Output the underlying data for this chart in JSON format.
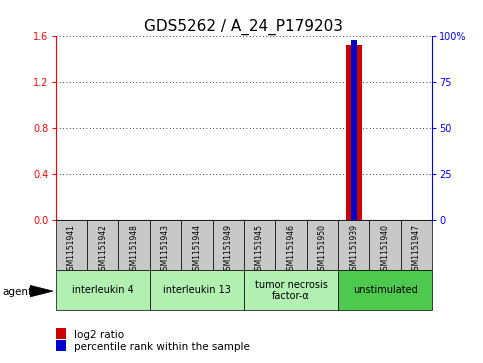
{
  "title": "GDS5262 / A_24_P179203",
  "samples": [
    "GSM1151941",
    "GSM1151942",
    "GSM1151948",
    "GSM1151943",
    "GSM1151944",
    "GSM1151949",
    "GSM1151945",
    "GSM1151946",
    "GSM1151950",
    "GSM1151939",
    "GSM1151940",
    "GSM1151947"
  ],
  "log2_ratio": [
    0,
    0,
    0,
    0,
    0,
    0,
    0,
    0,
    0,
    1.52,
    0,
    0
  ],
  "percentile_rank": [
    0,
    0,
    0,
    0,
    0,
    0,
    0,
    0,
    0,
    98,
    0,
    0
  ],
  "ylim_left": [
    0,
    1.6
  ],
  "ylim_right": [
    0,
    100
  ],
  "yticks_left": [
    0,
    0.4,
    0.8,
    1.2,
    1.6
  ],
  "yticks_right": [
    0,
    25,
    50,
    75,
    100
  ],
  "ytick_labels_right": [
    "0",
    "25",
    "50",
    "75",
    "100%"
  ],
  "agents": [
    {
      "label": "interleukin 4",
      "start": 0,
      "end": 2,
      "color": "#b2f0b2"
    },
    {
      "label": "interleukin 13",
      "start": 3,
      "end": 5,
      "color": "#b2f0b2"
    },
    {
      "label": "tumor necrosis\nfactor-α",
      "start": 6,
      "end": 8,
      "color": "#b2f0b2"
    },
    {
      "label": "unstimulated",
      "start": 9,
      "end": 11,
      "color": "#4dc94d"
    }
  ],
  "bar_color_red": "#CC0000",
  "bar_color_blue": "#0000CC",
  "grid_color": "#000000",
  "sample_box_color": "#C8C8C8",
  "bar_width": 0.5,
  "title_fontsize": 11,
  "tick_fontsize": 7,
  "label_fontsize": 7.5,
  "legend_fontsize": 7.5,
  "sample_fontsize": 5.5,
  "agent_fontsize": 7
}
